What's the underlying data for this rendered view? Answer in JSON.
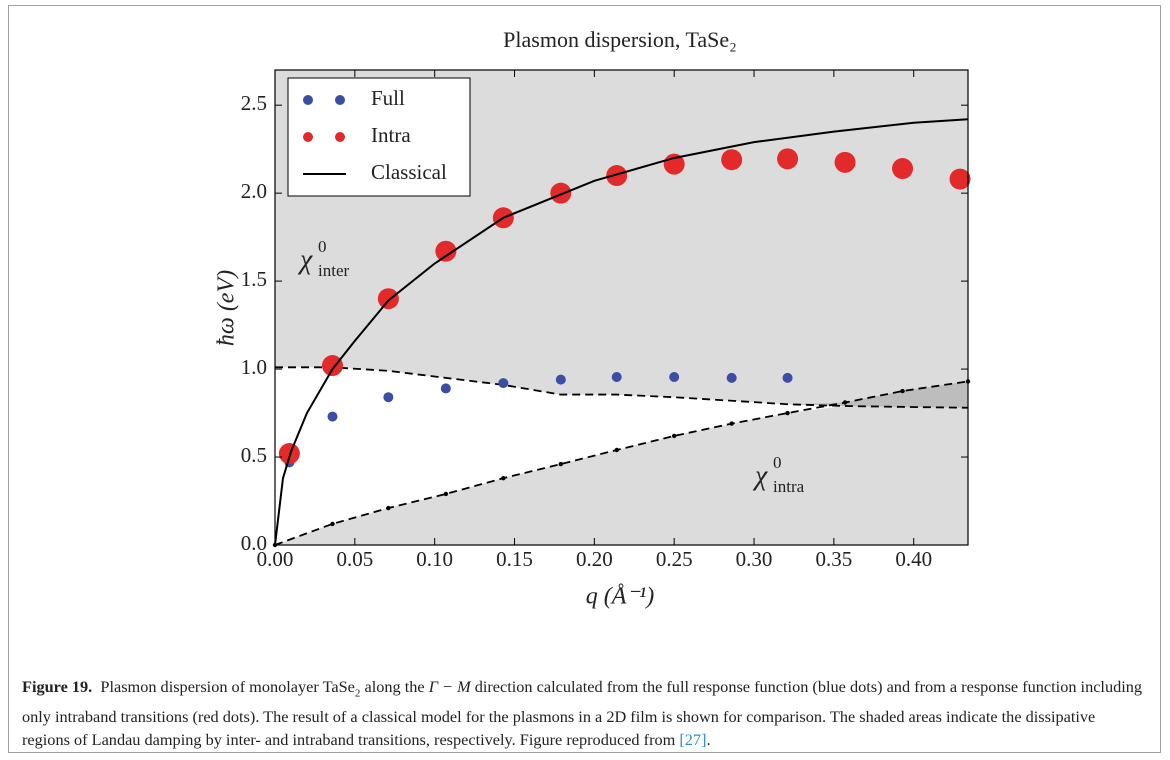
{
  "chart_data": {
    "type": "scatter",
    "title": "Plasmon dispersion, TaSe₂",
    "xlabel": "q (Å⁻¹)",
    "ylabel": "ħω (eV)",
    "xlim": [
      0,
      0.434
    ],
    "ylim": [
      0,
      2.7
    ],
    "xticks": [
      {
        "value": 0,
        "label": "0.00"
      },
      0.05,
      {
        "value": 0.1,
        "label": "0.10"
      },
      0.15,
      {
        "value": 0.2,
        "label": "0.20"
      },
      0.25,
      {
        "value": 0.3,
        "label": "0.30"
      },
      0.35,
      {
        "value": 0.4,
        "label": "0.40"
      }
    ],
    "yticks": [
      {
        "value": 0,
        "label": "0.0"
      },
      0.5,
      {
        "value": 1,
        "label": "1.0"
      },
      1.5,
      {
        "value": 2,
        "label": "2.0"
      },
      2.5
    ],
    "legend": "upper left",
    "background": "#dcdcdc",
    "series": [
      {
        "name": "Full",
        "type": "scatter",
        "color": "#3b4ea3",
        "x": [
          0.009,
          0.036,
          0.071,
          0.107,
          0.143,
          0.179,
          0.214,
          0.25,
          0.286,
          0.321
        ],
        "values": [
          0.47,
          0.73,
          0.84,
          0.89,
          0.92,
          0.94,
          0.955,
          0.955,
          0.95,
          0.95
        ]
      },
      {
        "name": "Intra",
        "type": "scatter",
        "color": "#e32a2a",
        "x": [
          0.009,
          0.036,
          0.071,
          0.107,
          0.143,
          0.179,
          0.214,
          0.25,
          0.286,
          0.321,
          0.357,
          0.393,
          0.429
        ],
        "values": [
          0.52,
          1.02,
          1.4,
          1.67,
          1.86,
          2.0,
          2.1,
          2.165,
          2.19,
          2.195,
          2.175,
          2.14,
          2.08
        ]
      },
      {
        "name": "Classical",
        "type": "line",
        "color": "#000000",
        "x": [
          0,
          0.005,
          0.01,
          0.02,
          0.036,
          0.05,
          0.071,
          0.1,
          0.143,
          0.2,
          0.25,
          0.3,
          0.35,
          0.4,
          0.434
        ],
        "values": [
          0,
          0.38,
          0.53,
          0.75,
          1.0,
          1.16,
          1.39,
          1.6,
          1.86,
          2.07,
          2.2,
          2.29,
          2.35,
          2.4,
          2.42
        ]
      }
    ],
    "boundaries": [
      {
        "x": [
          0,
          0.036,
          0.071,
          0.107,
          0.143,
          0.179,
          0.214,
          0.25,
          0.286,
          0.321,
          0.357,
          0.393,
          0.434
        ],
        "values": [
          1.01,
          1.01,
          0.99,
          0.95,
          0.91,
          0.855,
          0.855,
          0.84,
          0.82,
          0.8,
          0.79,
          0.785,
          0.78
        ],
        "markers": false
      },
      {
        "x": [
          0,
          0.036,
          0.071,
          0.107,
          0.143,
          0.179,
          0.214,
          0.25,
          0.286,
          0.321,
          0.357,
          0.393,
          0.434
        ],
        "values": [
          0,
          0.12,
          0.21,
          0.29,
          0.38,
          0.46,
          0.54,
          0.62,
          0.69,
          0.75,
          0.81,
          0.875,
          0.93
        ],
        "markers": true
      }
    ],
    "annotations": [
      {
        "symbol": "χ",
        "sup": "0",
        "sub": "inter"
      },
      {
        "symbol": "χ",
        "sup": "0",
        "sub": "intra"
      }
    ]
  },
  "caption": {
    "label": "Figure 19.",
    "parts": [
      "Plasmon dispersion of monolayer TaSe",
      "2",
      " along the ",
      "Γ − M",
      " direction calculated from the full response function (blue dots) and from a response function including only intraband transitions (red dots). The result of a classical model for the plasmons in a 2D film is shown for comparison. The shaded areas indicate the dissipative regions of Landau damping by inter- and intraband transitions, respectively. Figure reproduced from ",
      "[27]",
      "."
    ]
  }
}
